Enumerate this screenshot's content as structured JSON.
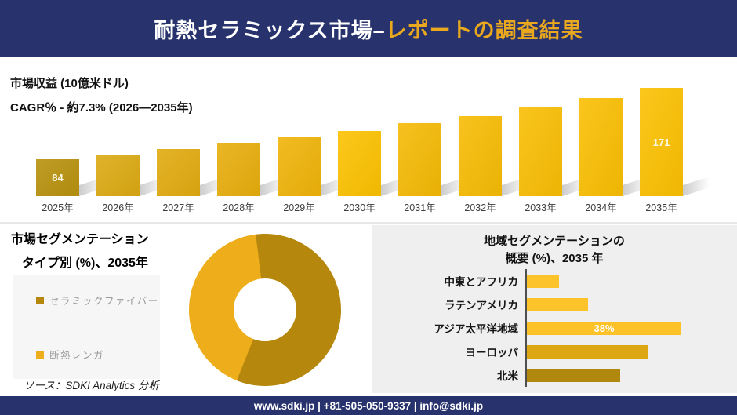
{
  "header": {
    "title_main": "耐熱セラミックス市場–",
    "title_accent": "レポートの調査結果"
  },
  "revenue": {
    "title": "市場収益 (10億米ドル)",
    "cagr": "CAGR％ - 約7.3% (2026―2035年)"
  },
  "type_segmentation": {
    "title_line1": "市場セグメンテーション",
    "title_line2": "タイプ別 (%)、2035年"
  },
  "region_segmentation": {
    "title_line1": "地域セグメンテーションの",
    "title_line2": "概要 (%)、2035 年"
  },
  "source": {
    "text": "ソース：SDKI Analytics 分析"
  },
  "footer": {
    "text": "www.sdki.jp | +81-505-050-9337 | info@sdki.jp"
  },
  "chart_data": [
    {
      "id": "market_revenue",
      "type": "bar",
      "title": "市場収益 (10億米ドル)",
      "subtitle": "CAGR％ - 約7.3% (2026―2035年)",
      "categories": [
        "2025年",
        "2026年",
        "2027年",
        "2028年",
        "2029年",
        "2030年",
        "2031年",
        "2032年",
        "2033年",
        "2034年",
        "2035年"
      ],
      "values": [
        84,
        90,
        97,
        104,
        111,
        119,
        128,
        137,
        147,
        159,
        171
      ],
      "data_labels": [
        "84",
        "",
        "",
        "",
        "",
        "",
        "",
        "",
        "",
        "",
        "171"
      ],
      "bar_colors": [
        "#b8920e",
        "#dcaa13",
        "#e1ab10",
        "#e7ae0d",
        "#f0b409",
        "#fcc201",
        "#f5ba06",
        "#f7bc05",
        "#f9be04",
        "#fabf03",
        "#fcc102"
      ],
      "ylabel": "10億米ドル",
      "grid": false,
      "legend": false,
      "note": "Only 2025 (84) and 2035 (171) carry visible data labels; intermediate values estimated from the stated 7.3% CAGR and bar heights."
    },
    {
      "id": "type_share_2035",
      "type": "pie",
      "donut": true,
      "title": "市場セグメンテーション タイプ別 (%)、2035年",
      "start_angle_deg": -7,
      "segments": [
        {
          "label": "セラミックファイバー",
          "value": 58,
          "color": "#b6870d"
        },
        {
          "label": "断熱レンガ",
          "value": 42,
          "color": "#eeae1b"
        }
      ],
      "legend_position": "left",
      "note": "No numeric labels shown in figure; segment values estimated from arc angles."
    },
    {
      "id": "region_share_2035",
      "type": "bar",
      "orientation": "horizontal",
      "title": "地域セグメンテーションの概要 (%)、2035 年",
      "categories": [
        "中東とアフリカ",
        "ラテンアメリカ",
        "アジア太平洋地域",
        "ヨーロッパ",
        "北米"
      ],
      "values": [
        8,
        15,
        38,
        30,
        23
      ],
      "data_labels": [
        "",
        "",
        "38%",
        "",
        ""
      ],
      "bar_colors": [
        "#fcc32b",
        "#fcc32b",
        "#fdc227",
        "#dda714",
        "#b1880e"
      ],
      "grid": false,
      "note": "Only アジア太平洋地域 is labeled (38%); other values estimated from bar lengths."
    }
  ]
}
